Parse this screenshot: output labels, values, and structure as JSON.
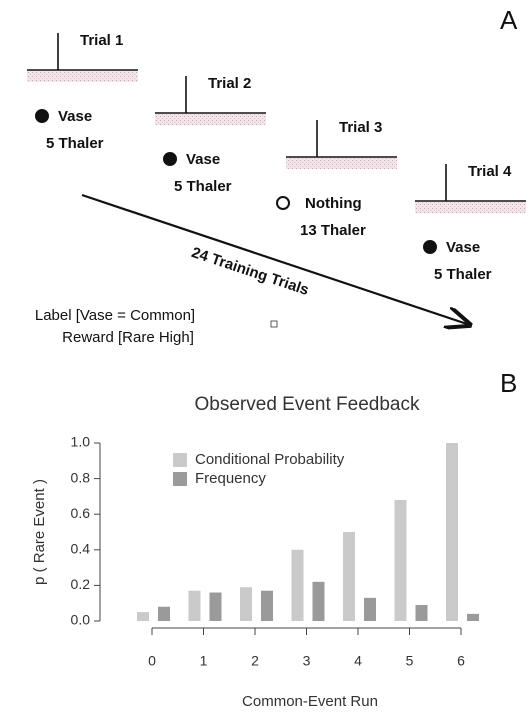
{
  "panel_a": {
    "label": "A",
    "trials": [
      {
        "title": "Trial 1",
        "outcome": "Vase",
        "reward": "5 Thaler",
        "marker": "filled"
      },
      {
        "title": "Trial 2",
        "outcome": "Vase",
        "reward": "5 Thaler",
        "marker": "filled"
      },
      {
        "title": "Trial 3",
        "outcome": "Nothing",
        "reward": "13 Thaler",
        "marker": "open"
      },
      {
        "title": "Trial 4",
        "outcome": "Vase",
        "reward": "5 Thaler",
        "marker": "filled"
      }
    ],
    "arrow_label": "24 Training Trials",
    "condition": [
      "Label [Vase = Common]",
      "Reward [Rare High]"
    ]
  },
  "panel_b": {
    "label": "B"
  },
  "chart_data": {
    "type": "bar",
    "title": "Observed Event Feedback",
    "x_label": "Common-Event Run",
    "y_label": "p ( Rare Event )",
    "categories": [
      "0",
      "1",
      "2",
      "3",
      "4",
      "5",
      "6"
    ],
    "series": [
      {
        "name": "Conditional Probability",
        "color": "#cacaca",
        "values": [
          0.05,
          0.17,
          0.19,
          0.4,
          0.5,
          0.68,
          1.0
        ]
      },
      {
        "name": "Frequency",
        "color": "#9a9a9a",
        "values": [
          0.08,
          0.16,
          0.17,
          0.22,
          0.13,
          0.09,
          0.04
        ]
      }
    ],
    "ylim": [
      0,
      1
    ],
    "yticks": [
      {
        "value": 0,
        "label": "0.0"
      },
      0.2,
      0.4,
      0.6,
      0.8,
      {
        "value": 1,
        "label": "1.0"
      }
    ],
    "legend": "top-left",
    "grid": false
  }
}
